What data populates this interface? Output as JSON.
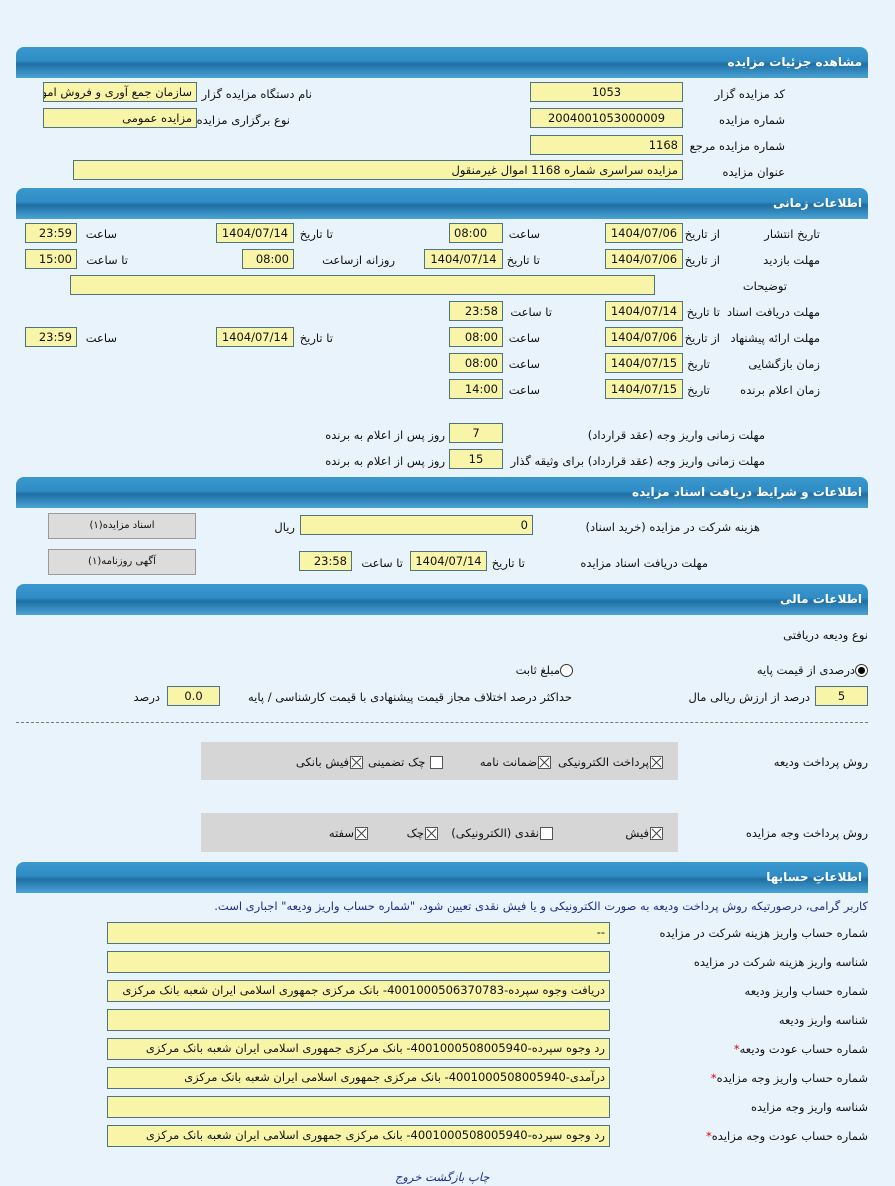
{
  "details": {
    "title": "مشاهده جزئیات مزایده",
    "code_label": "کد مزایده گزار",
    "code": "1053",
    "org_label": "نام دستگاه مزایده گزار",
    "org": "سازمان جمع آوری و فروش امو",
    "number_label": "شماره مزایده",
    "number": "2004001053000009",
    "type_label": "نوع برگزاری مزایده",
    "type": "مزایده عمومی",
    "ref_label": "شماره مزایده مرجع",
    "ref": "1168",
    "subject_label": "عنوان مزایده",
    "subject": "مزایده سراسری شماره 1168 اموال غیرمنقول"
  },
  "timing": {
    "title": "اطلاعات زمانی",
    "publish": {
      "label": "تاریخ انتشار",
      "from_label": "از تاریخ",
      "from": "1404/07/06",
      "time_label": "ساعت",
      "time": "08:00",
      "to_label": "تا تاریخ",
      "to": "1404/07/14",
      "time2_label": "ساعت",
      "time2": "23:59"
    },
    "visit": {
      "label": "مهلت بازدید",
      "from_label": "از تاریخ",
      "from": "1404/07/06",
      "to_label": "تا تاریخ",
      "to": "1404/07/14",
      "daily_label": "روزانه ازساعت",
      "daily": "08:00",
      "until_label": "تا ساعت",
      "until": "15:00"
    },
    "notes_label": "توضیحات",
    "notes": "",
    "docs": {
      "label": "مهلت دریافت اسناد",
      "to_label": "تا تاریخ",
      "to": "1404/07/14",
      "time_label": "تا ساعت",
      "time": "23:58"
    },
    "offer": {
      "label": "مهلت ارائه پیشنهاد",
      "from_label": "از تاریخ",
      "from": "1404/07/06",
      "time_label": "ساعت",
      "time": "08:00",
      "to_label": "تا تاریخ",
      "to": "1404/07/14",
      "time2_label": "ساعت",
      "time2": "23:59"
    },
    "opening": {
      "label": "زمان بازگشایی",
      "date_label": "تاریخ",
      "date": "1404/07/15",
      "time_label": "ساعت",
      "time": "08:00"
    },
    "winner": {
      "label": "زمان اعلام برنده",
      "date_label": "تاریخ",
      "date": "1404/07/15",
      "time_label": "ساعت",
      "time": "14:00"
    },
    "pay1_label": "مهلت زمانی واریز وجه (عقد قرارداد)",
    "pay1": "7",
    "pay1_suffix": "روز پس از اعلام به برنده",
    "pay2_label": "مهلت زمانی واریز وجه (عقد قرارداد) برای وثیقه گذار",
    "pay2": "15",
    "pay2_suffix": "روز پس از اعلام به برنده"
  },
  "documents": {
    "title": "اطلاعات و شرایط دریافت اسناد مزایده",
    "fee_label": "هزینه شرکت در مزایده (خرید اسناد)",
    "fee": "0",
    "currency": "ریال",
    "deadline_label": "مهلت دریافت اسناد مزایده",
    "to_label": "تا تاریخ",
    "to": "1404/07/14",
    "time_label": "تا ساعت",
    "time": "23:58",
    "docs_button": "اسناد مزایده(۱)",
    "ad_button": "آگهی روزنامه(۱)"
  },
  "financial": {
    "title": "اطلاعات مالی",
    "deposit_type_label": "نوع ودیعه دریافتی",
    "radio_percent": "درصدی از قیمت پایه",
    "radio_fixed": "مبلغ ثابت",
    "selected": "percent",
    "percent": "5",
    "percent_suffix": "درصد از ارزش ریالی مال",
    "max_diff_label": "حداکثر درصد اختلاف مجاز قیمت پیشنهادی با قیمت کارشناسی / پایه",
    "max_diff": "0.0",
    "max_diff_suffix": "درصد",
    "deposit_method_label": "روش پرداخت ودیعه",
    "deposit_methods": [
      {
        "label": "پرداخت الکترونیکی",
        "checked": true
      },
      {
        "label": "ضمانت نامه",
        "checked": true
      },
      {
        "label": "چک تضمینی",
        "checked": false
      },
      {
        "label": "فیش بانکی",
        "checked": true
      }
    ],
    "payment_method_label": "روش پرداخت وجه مزایده",
    "payment_methods": [
      {
        "label": "فیش",
        "checked": true
      },
      {
        "label": "نقدی (الکترونیکی)",
        "checked": false
      },
      {
        "label": "چک",
        "checked": true
      },
      {
        "label": "سفته",
        "checked": true
      }
    ]
  },
  "accounts": {
    "title": "اطلاعاتِ حسابها",
    "note": "کاربر گرامی، درصورتیکه روش پرداخت ودیعه به صورت الکترونیکی و یا فیش نقدی تعیین شود، \"شماره حساب واریز ودیعه\" اجباری است.",
    "rows": [
      {
        "label": "شماره حساب واریز هزینه شرکت در مزایده",
        "value": "--",
        "required": false
      },
      {
        "label": "شناسه واریز هزینه شرکت در مزایده",
        "value": "",
        "required": false
      },
      {
        "label": "شماره حساب واریز ودیعه",
        "value": "دریافت وجوه سپرده-4001000506370783- بانک مرکزی جمهوری اسلامی ایران شعبه بانک مرکزی",
        "required": false
      },
      {
        "label": "شناسه واریز ودیعه",
        "value": "",
        "required": false
      },
      {
        "label": "شماره حساب عودت ودیعه",
        "value": "رد وجوه سپرده-4001000508005940- بانک مرکزی جمهوری اسلامی ایران شعبه بانک مرکزی",
        "required": true
      },
      {
        "label": "شماره حساب واریز وجه مزایده",
        "value": "درآمدی-4001000508005940- بانک مرکزی جمهوری اسلامی ایران شعبه بانک مرکزی",
        "required": true
      },
      {
        "label": "شناسه واریز وجه مزایده",
        "value": "",
        "required": false
      },
      {
        "label": "شماره حساب عودت وجه مزایده",
        "value": "رد وجوه سپرده-4001000508005940- بانک مرکزی جمهوری اسلامی ایران شعبه بانک مرکزی",
        "required": true
      }
    ]
  },
  "footer": {
    "print": "چاپ",
    "back": "بازگشت",
    "exit": "خروج"
  },
  "colors": {
    "header": "#2f8cc4",
    "field": "#f9f5a8",
    "background": "#e9f3fb"
  }
}
